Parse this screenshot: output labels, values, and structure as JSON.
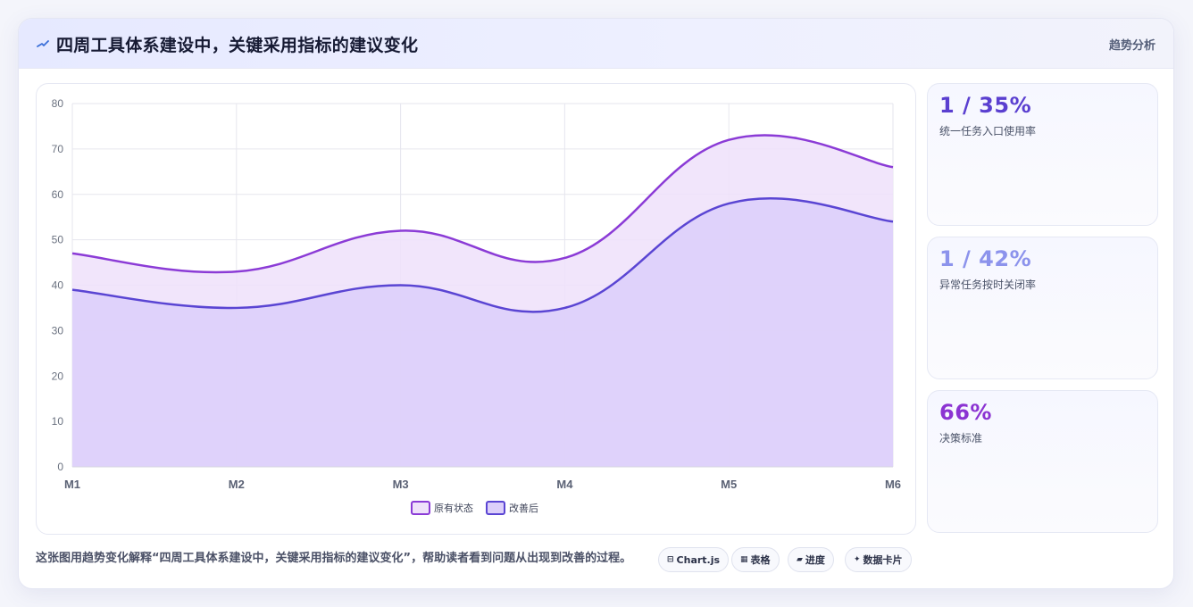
{
  "header": {
    "title": "四周工具体系建设中，关键采用指标的建议变化",
    "link_label": "趋势分析"
  },
  "chart_data": {
    "type": "area",
    "categories": [
      "M1",
      "M2",
      "M3",
      "M4",
      "M5",
      "M6"
    ],
    "ylim": [
      0,
      80
    ],
    "yticks": [
      0,
      10,
      20,
      30,
      40,
      50,
      60,
      70,
      80
    ],
    "grid": true,
    "legend_position": "bottom",
    "series": [
      {
        "name": "原有状态",
        "values": [
          47,
          43,
          52,
          46,
          72,
          66
        ],
        "color": "#8b3bd6",
        "fill": "#efe1fa"
      },
      {
        "name": "改善后",
        "values": [
          39,
          35,
          40,
          35,
          58,
          54
        ],
        "color": "#5a45d3",
        "fill": "#dccffa"
      }
    ]
  },
  "stats": [
    {
      "value": "1 / 35%",
      "label": "统一任务入口使用率",
      "color": "#5a3fd0"
    },
    {
      "value": "1 / 42%",
      "label": "异常任务按时关闭率",
      "color": "#8c93ec"
    },
    {
      "value": "66%",
      "label": "决策标准",
      "color": "#8b33d2"
    }
  ],
  "footer": {
    "description": "这张图用趋势变化解释“四周工具体系建设中，关键采用指标的建议变化”，帮助读者看到问题从出现到改善的过程。",
    "chips": [
      {
        "icon": "⊟",
        "label": "Chart.js"
      },
      {
        "icon": "▦",
        "label": "表格"
      },
      {
        "icon": "▰",
        "label": "进度"
      },
      {
        "icon": "✦",
        "label": "数据卡片"
      }
    ]
  }
}
